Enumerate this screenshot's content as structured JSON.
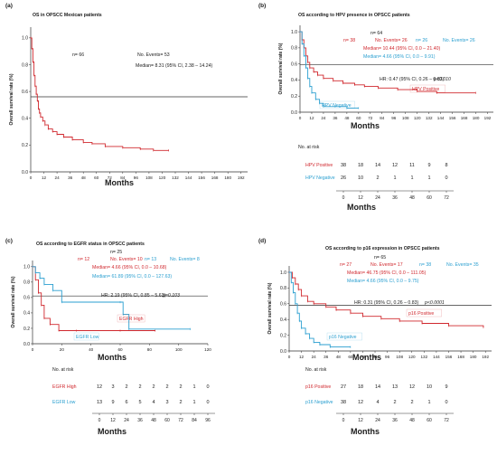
{
  "colors": {
    "red": "#d0282e",
    "blue": "#2a9fd0",
    "black": "#1a1a1a",
    "ref": "#333333"
  },
  "chart_data": [
    {
      "id": "a",
      "type": "line",
      "panel_label": "(a)",
      "title": "OS in OPSCC Mexican patients",
      "xlabel": "Months",
      "ylabel": "Overall survival rate (%)",
      "xticks": [
        0,
        12,
        24,
        36,
        48,
        60,
        72,
        84,
        96,
        108,
        120,
        132,
        144,
        156,
        168,
        180,
        192
      ],
      "yticks": [
        0.0,
        0.2,
        0.4,
        0.6,
        0.8,
        1.0
      ],
      "xlim": [
        0,
        198
      ],
      "ylim": [
        0,
        1.08
      ],
      "reference_line": 0.56,
      "annotations": [
        {
          "text": "n= 66",
          "color": "black"
        },
        {
          "text": "No. Events= 53",
          "color": "black"
        },
        {
          "text": "Median= 8.31 (95% CI, 2.38 – 14.24)",
          "color": "black"
        }
      ],
      "series": [
        {
          "color": "red",
          "points": [
            [
              0,
              1.0
            ],
            [
              1,
              0.92
            ],
            [
              2,
              0.82
            ],
            [
              3,
              0.72
            ],
            [
              4,
              0.64
            ],
            [
              5,
              0.58
            ],
            [
              6,
              0.53
            ],
            [
              7,
              0.47
            ],
            [
              8,
              0.44
            ],
            [
              9,
              0.41
            ],
            [
              11,
              0.38
            ],
            [
              13,
              0.35
            ],
            [
              16,
              0.32
            ],
            [
              20,
              0.3
            ],
            [
              24,
              0.28
            ],
            [
              30,
              0.26
            ],
            [
              38,
              0.24
            ],
            [
              48,
              0.22
            ],
            [
              56,
              0.21
            ],
            [
              68,
              0.19
            ],
            [
              84,
              0.18
            ],
            [
              100,
              0.17
            ],
            [
              112,
              0.16
            ],
            [
              126,
              0.16
            ]
          ]
        }
      ]
    },
    {
      "id": "b",
      "type": "line",
      "panel_label": "(b)",
      "title": "OS according to HPV presence in OPSCC patients",
      "xlabel": "Months",
      "ylabel": "Overall survival rate (%)",
      "xticks": [
        0,
        12,
        24,
        36,
        48,
        60,
        72,
        84,
        96,
        108,
        120,
        132,
        144,
        156,
        168,
        180,
        192
      ],
      "yticks": [
        0.0,
        0.2,
        0.4,
        0.6,
        0.8,
        1.0
      ],
      "xlim": [
        0,
        198
      ],
      "ylim": [
        0,
        1.08
      ],
      "reference_line": 0.59,
      "annotations": [
        {
          "text": "n= 64",
          "color": "black"
        },
        {
          "text": "n= 38",
          "color": "red"
        },
        {
          "text": "No. Events= 26",
          "color": "red"
        },
        {
          "text": "n= 26",
          "color": "blue"
        },
        {
          "text": "No. Events= 26",
          "color": "blue"
        },
        {
          "text": "Median= 10.44 (95% CI, 0.0 – 21.40)",
          "color": "red"
        },
        {
          "text": "Median= 4.66 (95% CI, 0.0 – 9.91)",
          "color": "blue"
        },
        {
          "text": "HR: 0.47 (95% CI, 0.26 – 0.83)",
          "color": "black"
        },
        {
          "text": "p<0.010",
          "color": "black"
        }
      ],
      "series_labels": [
        {
          "text": "HPV Positive",
          "color": "red"
        },
        {
          "text": "HPV Negative",
          "color": "blue"
        }
      ],
      "series": [
        {
          "color": "red",
          "points": [
            [
              0,
              1.0
            ],
            [
              2,
              0.9
            ],
            [
              4,
              0.8
            ],
            [
              6,
              0.7
            ],
            [
              8,
              0.62
            ],
            [
              10,
              0.55
            ],
            [
              14,
              0.5
            ],
            [
              18,
              0.46
            ],
            [
              24,
              0.42
            ],
            [
              34,
              0.39
            ],
            [
              44,
              0.36
            ],
            [
              56,
              0.34
            ],
            [
              66,
              0.32
            ],
            [
              80,
              0.3
            ],
            [
              100,
              0.28
            ],
            [
              120,
              0.26
            ],
            [
              140,
              0.24
            ],
            [
              180,
              0.24
            ]
          ]
        },
        {
          "color": "blue",
          "points": [
            [
              0,
              1.0
            ],
            [
              2,
              0.85
            ],
            [
              4,
              0.7
            ],
            [
              6,
              0.55
            ],
            [
              8,
              0.42
            ],
            [
              10,
              0.32
            ],
            [
              12,
              0.24
            ],
            [
              16,
              0.16
            ],
            [
              20,
              0.11
            ],
            [
              24,
              0.07
            ],
            [
              36,
              0.07
            ],
            [
              48,
              0.05
            ],
            [
              60,
              0.05
            ]
          ]
        }
      ],
      "risk_table": {
        "title": "No. at risk",
        "xlabel": "Months",
        "xticks": [
          0,
          12,
          24,
          36,
          48,
          60,
          72
        ],
        "rows": [
          {
            "label": "HPV Positive",
            "color": "red",
            "values": [
              "38",
              "18",
              "14",
              "12",
              "11",
              "9",
              "8"
            ]
          },
          {
            "label": "HPV Negative",
            "color": "blue",
            "values": [
              "26",
              "10",
              "2",
              "1",
              "1",
              "1",
              "0"
            ]
          }
        ]
      }
    },
    {
      "id": "c",
      "type": "line",
      "panel_label": "(c)",
      "title": "OS according to EGFR status in OPSCC patients",
      "xlabel": "Months",
      "ylabel": "Overall survival rate (%)",
      "xticks": [
        0,
        20,
        40,
        60,
        80,
        100,
        120
      ],
      "yticks": [
        0.0,
        0.2,
        0.4,
        0.6,
        0.8,
        1.0
      ],
      "xlim": [
        0,
        120
      ],
      "ylim": [
        0,
        1.08
      ],
      "reference_line": 0.62,
      "annotations": [
        {
          "text": "n= 25",
          "color": "black"
        },
        {
          "text": "n= 12",
          "color": "red"
        },
        {
          "text": "No. Events= 10",
          "color": "red"
        },
        {
          "text": "n= 13",
          "color": "blue"
        },
        {
          "text": "No. Events= 8",
          "color": "blue"
        },
        {
          "text": "Median= 4.66 (95% CI, 0.0 – 10.68)",
          "color": "red"
        },
        {
          "text": "Median= 61.89 (95% CI, 0.0 – 127.63)",
          "color": "blue"
        },
        {
          "text": "HR: 2.19 (95% CI, 0.85 – 5.63)",
          "color": "black"
        },
        {
          "text": "p=0.103",
          "color": "black"
        }
      ],
      "series_labels": [
        {
          "text": "EGFR High",
          "color": "red"
        },
        {
          "text": "EGFR Low",
          "color": "blue"
        }
      ],
      "series": [
        {
          "color": "red",
          "points": [
            [
              0,
              1.0
            ],
            [
              2,
              0.83
            ],
            [
              4,
              0.66
            ],
            [
              6,
              0.5
            ],
            [
              8,
              0.33
            ],
            [
              12,
              0.25
            ],
            [
              18,
              0.17
            ],
            [
              30,
              0.17
            ],
            [
              60,
              0.17
            ],
            [
              84,
              0.17
            ]
          ]
        },
        {
          "color": "blue",
          "points": [
            [
              0,
              1.0
            ],
            [
              2,
              0.92
            ],
            [
              5,
              0.85
            ],
            [
              8,
              0.77
            ],
            [
              14,
              0.69
            ],
            [
              20,
              0.54
            ],
            [
              60,
              0.54
            ],
            [
              62,
              0.38
            ],
            [
              66,
              0.19
            ],
            [
              108,
              0.19
            ]
          ]
        }
      ],
      "risk_table": {
        "title": "No. at risk",
        "xlabel": "Months",
        "xticks": [
          0,
          12,
          24,
          36,
          48,
          60,
          72,
          84,
          96
        ],
        "rows": [
          {
            "label": "EGFR High",
            "color": "red",
            "values": [
              "12",
              "3",
              "2",
              "2",
              "2",
              "2",
              "2",
              "1",
              "0"
            ]
          },
          {
            "label": "EGFR Low",
            "color": "blue",
            "values": [
              "13",
              "9",
              "6",
              "5",
              "4",
              "3",
              "2",
              "1",
              "0"
            ]
          }
        ]
      }
    },
    {
      "id": "d",
      "type": "line",
      "panel_label": "(d)",
      "title": "OS according to p16 expression in OPSCC patients",
      "xlabel": "Months",
      "ylabel": "Overall survival rate (%)",
      "xticks": [
        0,
        12,
        24,
        36,
        48,
        60,
        72,
        84,
        96,
        108,
        120,
        132,
        144,
        156,
        168,
        180,
        192
      ],
      "yticks": [
        0.0,
        0.2,
        0.4,
        0.6,
        0.8,
        1.0
      ],
      "xlim": [
        0,
        198
      ],
      "ylim": [
        0,
        1.08
      ],
      "reference_line": 0.58,
      "annotations": [
        {
          "text": "n= 65",
          "color": "black"
        },
        {
          "text": "n= 27",
          "color": "red"
        },
        {
          "text": "No. Events= 17",
          "color": "red"
        },
        {
          "text": "n= 38",
          "color": "blue"
        },
        {
          "text": "No. Events= 35",
          "color": "blue"
        },
        {
          "text": "Median= 46.75 (95% CI, 0.0 – 111.05)",
          "color": "red"
        },
        {
          "text": "Median= 4.66 (95% CI, 0.0 – 9.75)",
          "color": "blue"
        },
        {
          "text": "HR: 0.31 (95% CI, 0.26 – 0.83)",
          "color": "black"
        },
        {
          "text": "p<0.0001",
          "color": "black"
        }
      ],
      "series_labels": [
        {
          "text": "p16 Positive",
          "color": "red"
        },
        {
          "text": "p16 Negative",
          "color": "blue"
        }
      ],
      "series": [
        {
          "color": "red",
          "points": [
            [
              0,
              1.0
            ],
            [
              3,
              0.93
            ],
            [
              6,
              0.85
            ],
            [
              9,
              0.78
            ],
            [
              12,
              0.7
            ],
            [
              18,
              0.63
            ],
            [
              24,
              0.6
            ],
            [
              36,
              0.56
            ],
            [
              46,
              0.52
            ],
            [
              60,
              0.48
            ],
            [
              72,
              0.44
            ],
            [
              90,
              0.41
            ],
            [
              108,
              0.38
            ],
            [
              130,
              0.35
            ],
            [
              156,
              0.32
            ],
            [
              190,
              0.3
            ]
          ]
        },
        {
          "color": "blue",
          "points": [
            [
              0,
              1.0
            ],
            [
              2,
              0.87
            ],
            [
              4,
              0.74
            ],
            [
              6,
              0.6
            ],
            [
              8,
              0.48
            ],
            [
              10,
              0.38
            ],
            [
              12,
              0.29
            ],
            [
              16,
              0.22
            ],
            [
              20,
              0.16
            ],
            [
              24,
              0.11
            ],
            [
              30,
              0.08
            ],
            [
              40,
              0.05
            ],
            [
              60,
              0.05
            ]
          ]
        }
      ],
      "risk_table": {
        "title": "No. at risk",
        "xlabel": "Months",
        "xticks": [
          0,
          12,
          24,
          36,
          48,
          60,
          72
        ],
        "rows": [
          {
            "label": "p16 Positive",
            "color": "red",
            "values": [
              "27",
              "18",
              "14",
              "13",
              "12",
              "10",
              "9"
            ]
          },
          {
            "label": "p16 Negative",
            "color": "blue",
            "values": [
              "38",
              "12",
              "4",
              "2",
              "2",
              "1",
              "0"
            ]
          }
        ]
      }
    }
  ]
}
